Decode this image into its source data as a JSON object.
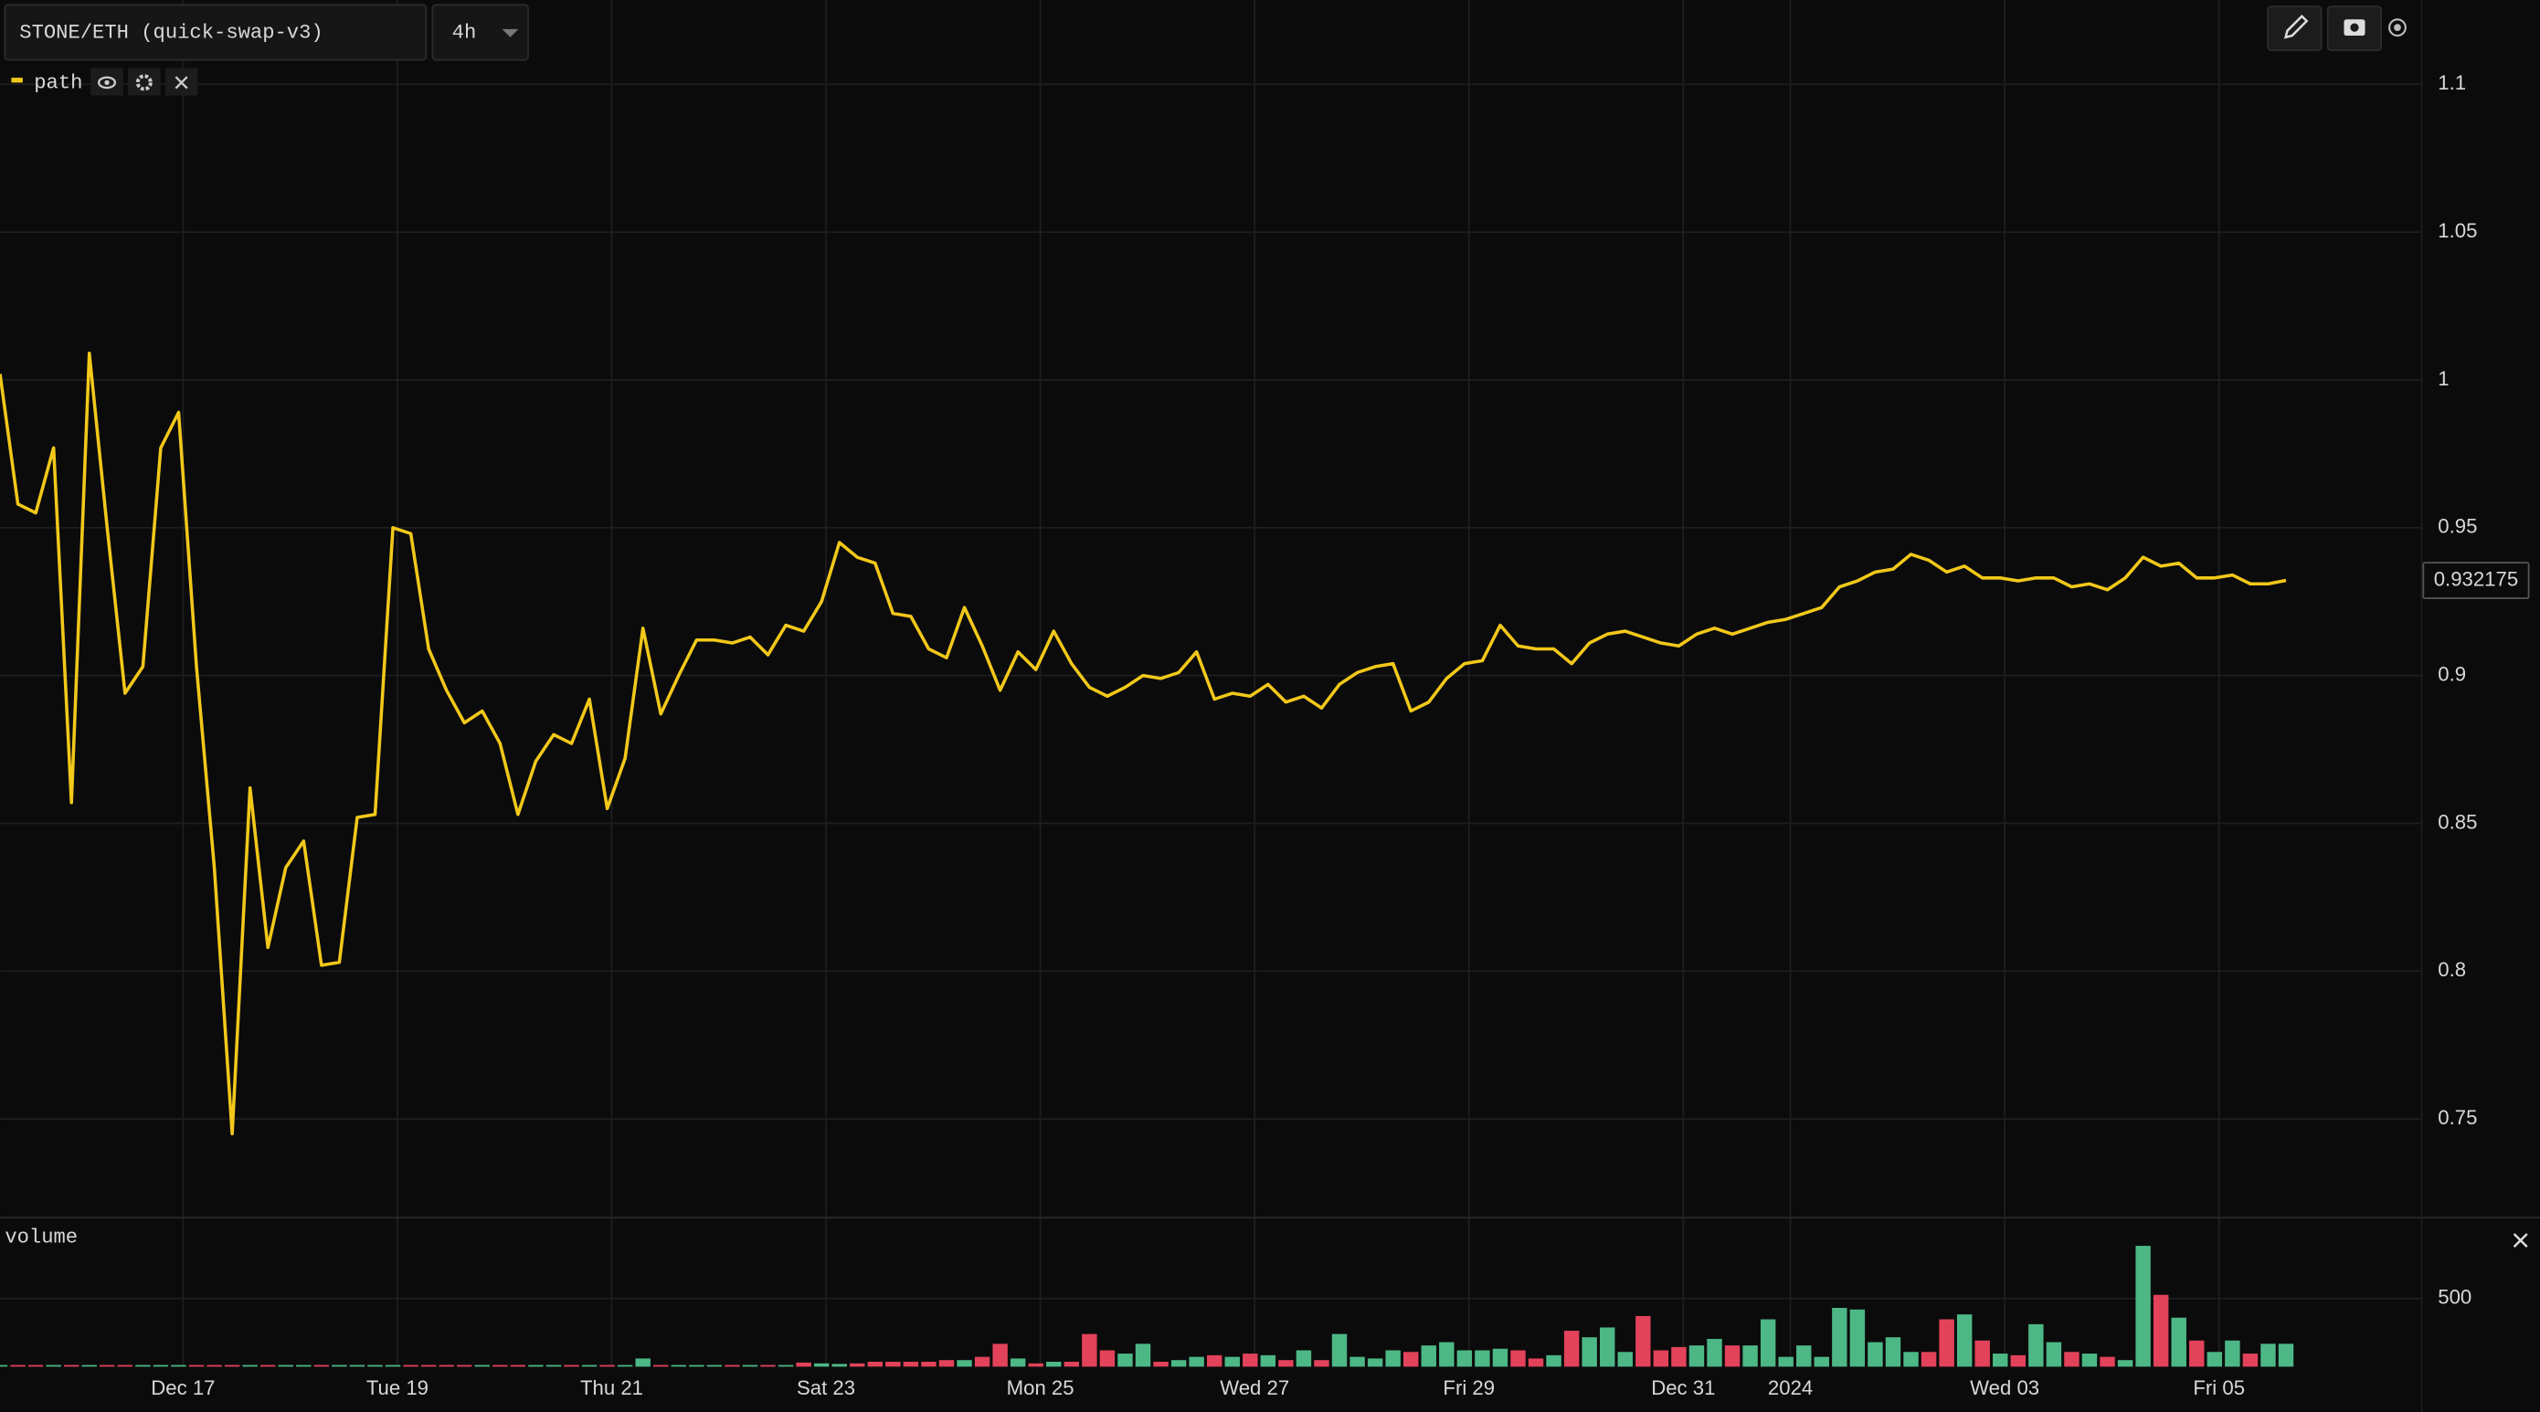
{
  "chart_data": {
    "type": "line",
    "title": "STONE/ETH (quick-swap-v3)",
    "interval": "4h",
    "series": [
      {
        "name": "path",
        "color": "#f2c81a",
        "values": [
          1.002,
          0.958,
          0.955,
          0.977,
          0.857,
          1.009,
          0.95,
          0.894,
          0.903,
          0.977,
          0.989,
          0.903,
          0.835,
          0.745,
          0.862,
          0.808,
          0.835,
          0.844,
          0.802,
          0.803,
          0.852,
          0.853,
          0.95,
          0.948,
          0.909,
          0.895,
          0.884,
          0.888,
          0.877,
          0.853,
          0.871,
          0.88,
          0.877,
          0.892,
          0.855,
          0.872,
          0.916,
          0.887,
          0.9,
          0.912,
          0.912,
          0.911,
          0.913,
          0.907,
          0.917,
          0.915,
          0.925,
          0.945,
          0.94,
          0.938,
          0.921,
          0.92,
          0.909,
          0.906,
          0.923,
          0.91,
          0.895,
          0.908,
          0.902,
          0.915,
          0.904,
          0.896,
          0.893,
          0.896,
          0.9,
          0.899,
          0.901,
          0.908,
          0.892,
          0.894,
          0.893,
          0.897,
          0.891,
          0.893,
          0.889,
          0.897,
          0.901,
          0.903,
          0.904,
          0.888,
          0.891,
          0.899,
          0.904,
          0.905,
          0.917,
          0.91,
          0.909,
          0.909,
          0.904,
          0.911,
          0.914,
          0.915,
          0.913,
          0.911,
          0.91,
          0.914,
          0.916,
          0.914,
          0.916,
          0.918,
          0.919,
          0.921,
          0.923,
          0.93,
          0.932,
          0.935,
          0.936,
          0.941,
          0.939,
          0.935,
          0.937,
          0.933,
          0.933,
          0.932,
          0.933,
          0.933,
          0.93,
          0.931,
          0.929,
          0.933,
          0.94,
          0.937,
          0.938,
          0.933,
          0.933,
          0.934,
          0.931,
          0.931,
          0.932175
        ]
      }
    ],
    "xlim": [
      0,
      135.6
    ],
    "xticks": [
      {
        "value": 10.25,
        "label": "Dec 17"
      },
      {
        "value": 22.25,
        "label": "Tue 19"
      },
      {
        "value": 34.25,
        "label": "Thu 21"
      },
      {
        "value": 46.25,
        "label": "Sat 23"
      },
      {
        "value": 58.25,
        "label": "Mon 25"
      },
      {
        "value": 70.25,
        "label": "Wed 27"
      },
      {
        "value": 82.25,
        "label": "Fri 29"
      },
      {
        "value": 94.25,
        "label": "Dec 31"
      },
      {
        "value": 100.25,
        "label": "2024"
      },
      {
        "value": 112.25,
        "label": "Wed 03"
      },
      {
        "value": 124.25,
        "label": "Fri 05"
      }
    ],
    "ylim": [
      0.7166,
      1.1285
    ],
    "yticks": [
      0.75,
      0.8,
      0.85,
      0.9,
      0.95,
      1,
      1.05,
      1.1
    ],
    "grid": true,
    "volume": {
      "name": "volume",
      "up_color": "#4db886",
      "down_color": "#e2435a",
      "ylim": [
        0,
        1095
      ],
      "yticks": [
        500
      ],
      "values": [
        12,
        12,
        12,
        12,
        12,
        12,
        12,
        12,
        12,
        12,
        12,
        12,
        12,
        12,
        12,
        12,
        12,
        12,
        12,
        12,
        12,
        12,
        12,
        12,
        12,
        12,
        12,
        12,
        12,
        12,
        12,
        12,
        12,
        12,
        12,
        12,
        60,
        12,
        12,
        12,
        12,
        12,
        12,
        12,
        12,
        30,
        24,
        20,
        24,
        36,
        36,
        36,
        36,
        48,
        48,
        72,
        168,
        60,
        24,
        36,
        36,
        240,
        120,
        96,
        168,
        36,
        48,
        72,
        84,
        72,
        96,
        84,
        48,
        120,
        48,
        240,
        72,
        60,
        120,
        108,
        156,
        180,
        120,
        120,
        132,
        120,
        60,
        84,
        264,
        216,
        288,
        108,
        372,
        120,
        144,
        156,
        204,
        156,
        156,
        348,
        72,
        156,
        72,
        432,
        420,
        180,
        216,
        108,
        108,
        348,
        384,
        192,
        96,
        84,
        312,
        180,
        108,
        96,
        72,
        48,
        888,
        528,
        360,
        192,
        108,
        192,
        96,
        168,
        168
      ]
    }
  }
}
